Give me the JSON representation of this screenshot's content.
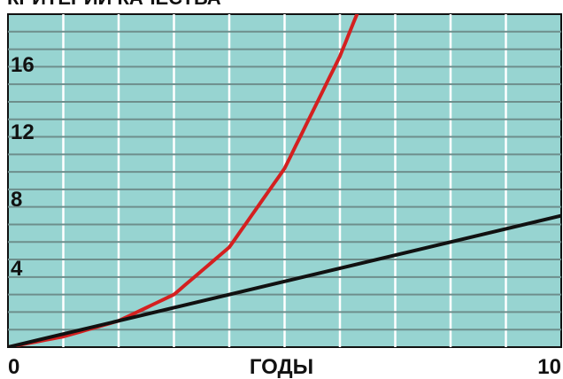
{
  "chart_data": {
    "type": "line",
    "title": "КРИТЕРИИ КАЧЕСТВА",
    "xlabel": "ГОДЫ",
    "ylabel": "",
    "x_tick_labels": [
      "0",
      "10"
    ],
    "y_tick_labels": [
      "4",
      "8",
      "12",
      "16"
    ],
    "xlim": [
      0,
      10
    ],
    "ylim": [
      0,
      19
    ],
    "grid": true,
    "background_color": "#97d4d1",
    "series": [
      {
        "color": "#d42020",
        "x": [
          0,
          1,
          2,
          3,
          4,
          5,
          6,
          6.5
        ],
        "y": [
          0,
          0.6,
          1.5,
          3.0,
          5.7,
          10.2,
          16.6,
          20.5
        ]
      },
      {
        "color": "#111111",
        "x": [
          0,
          10
        ],
        "y": [
          0,
          7.5
        ]
      }
    ]
  }
}
